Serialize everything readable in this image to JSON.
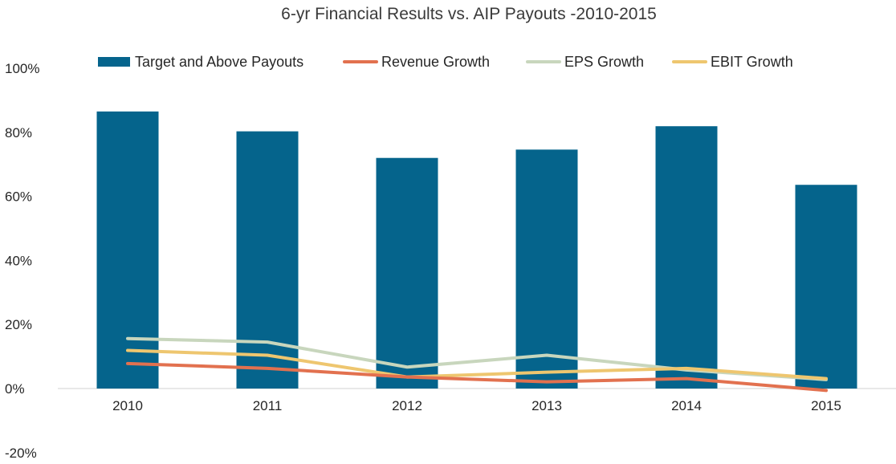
{
  "chart_data": {
    "type": "bar",
    "title": "6-yr Financial Results vs. AIP Payouts -2010-2015",
    "xlabel": "",
    "ylabel": "",
    "categories": [
      "2010",
      "2011",
      "2012",
      "2013",
      "2014",
      "2015"
    ],
    "ylim": [
      -20,
      100
    ],
    "yticks": [
      -20,
      0,
      20,
      40,
      60,
      80,
      100
    ],
    "ytick_labels": [
      "-20%",
      "0%",
      "20%",
      "40%",
      "60%",
      "80%",
      "100%"
    ],
    "grid": false,
    "legend_position": "top",
    "series": [
      {
        "name": "Target and Above Payouts",
        "kind": "bar",
        "color": "#05648c",
        "values": [
          86.5,
          80.3,
          72.0,
          74.6,
          81.9,
          63.6
        ]
      },
      {
        "name": "Revenue Growth",
        "kind": "line",
        "color": "#e2714f",
        "values": [
          7.8,
          6.3,
          3.6,
          2.1,
          3.1,
          -0.6
        ]
      },
      {
        "name": "EPS Growth",
        "kind": "line",
        "color": "#c8d6bd",
        "values": [
          15.6,
          14.5,
          6.7,
          10.4,
          5.8,
          2.8
        ]
      },
      {
        "name": "EBIT Growth",
        "kind": "line",
        "color": "#eec66f",
        "values": [
          11.9,
          10.4,
          3.6,
          5.1,
          6.3,
          3.1
        ]
      }
    ]
  }
}
